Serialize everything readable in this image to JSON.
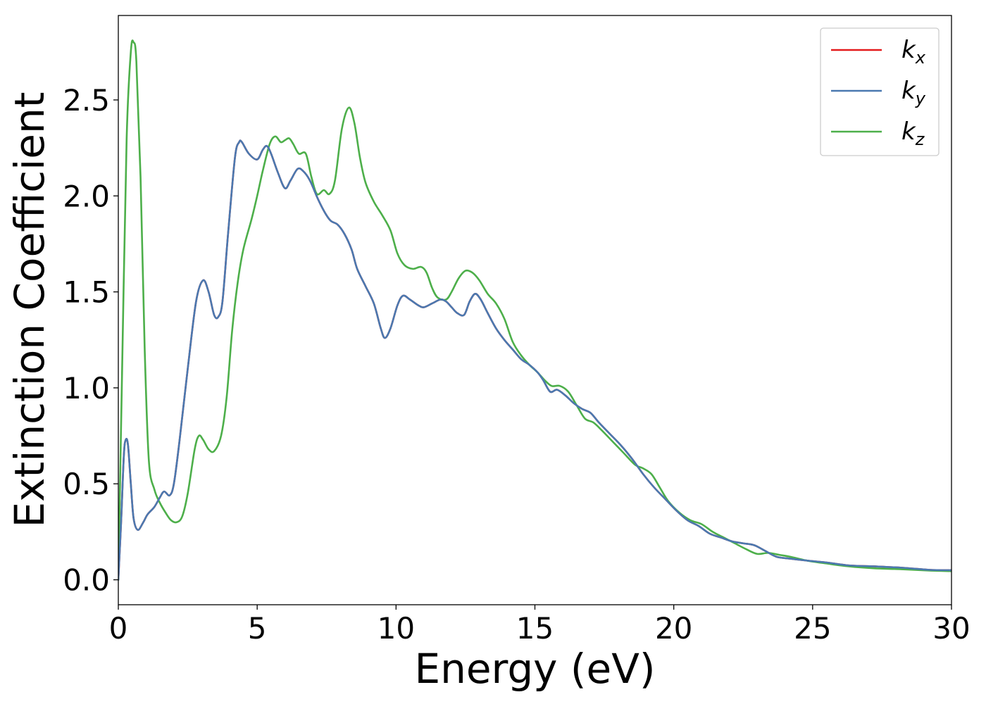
{
  "chart_data": {
    "type": "line",
    "title": "",
    "xlabel": "Energy (eV)",
    "ylabel": "Extinction Coefficient",
    "xlim": [
      0,
      30
    ],
    "ylim": [
      -0.13,
      2.94
    ],
    "xticks": [
      0,
      5,
      10,
      15,
      20,
      25,
      30
    ],
    "xtick_labels": [
      "0",
      "5",
      "10",
      "15",
      "20",
      "25",
      "30"
    ],
    "yticks": [
      0.0,
      0.5,
      1.0,
      1.5,
      2.0,
      2.5
    ],
    "ytick_labels": [
      "0.0",
      "0.5",
      "1.0",
      "1.5",
      "2.0",
      "2.5"
    ],
    "grid": false,
    "legend_position": "top-right",
    "series": [
      {
        "name": "k_x",
        "legend_main": "k",
        "legend_sub": "x",
        "color": "#e41a1c",
        "points": [
          [
            0,
            0.0
          ],
          [
            0.1,
            0.3
          ],
          [
            0.2,
            0.65
          ],
          [
            0.27,
            0.73
          ],
          [
            0.35,
            0.7
          ],
          [
            0.45,
            0.5
          ],
          [
            0.55,
            0.32
          ],
          [
            0.7,
            0.26
          ],
          [
            0.9,
            0.3
          ],
          [
            1.05,
            0.34
          ],
          [
            1.3,
            0.38
          ],
          [
            1.5,
            0.43
          ],
          [
            1.65,
            0.46
          ],
          [
            1.85,
            0.44
          ],
          [
            2.0,
            0.5
          ],
          [
            2.2,
            0.72
          ],
          [
            2.5,
            1.1
          ],
          [
            2.8,
            1.45
          ],
          [
            3.05,
            1.56
          ],
          [
            3.25,
            1.5
          ],
          [
            3.45,
            1.38
          ],
          [
            3.6,
            1.37
          ],
          [
            3.75,
            1.45
          ],
          [
            3.95,
            1.8
          ],
          [
            4.2,
            2.2
          ],
          [
            4.35,
            2.28
          ],
          [
            4.45,
            2.28
          ],
          [
            4.7,
            2.22
          ],
          [
            5.0,
            2.19
          ],
          [
            5.2,
            2.24
          ],
          [
            5.35,
            2.26
          ],
          [
            5.5,
            2.22
          ],
          [
            5.75,
            2.12
          ],
          [
            6.0,
            2.04
          ],
          [
            6.2,
            2.08
          ],
          [
            6.45,
            2.14
          ],
          [
            6.65,
            2.13
          ],
          [
            6.9,
            2.08
          ],
          [
            7.2,
            1.98
          ],
          [
            7.45,
            1.91
          ],
          [
            7.65,
            1.87
          ],
          [
            7.9,
            1.85
          ],
          [
            8.15,
            1.8
          ],
          [
            8.4,
            1.72
          ],
          [
            8.6,
            1.62
          ],
          [
            8.9,
            1.53
          ],
          [
            9.2,
            1.44
          ],
          [
            9.45,
            1.31
          ],
          [
            9.6,
            1.26
          ],
          [
            9.8,
            1.31
          ],
          [
            10.05,
            1.43
          ],
          [
            10.25,
            1.48
          ],
          [
            10.5,
            1.46
          ],
          [
            10.8,
            1.43
          ],
          [
            11.0,
            1.42
          ],
          [
            11.3,
            1.44
          ],
          [
            11.6,
            1.46
          ],
          [
            11.8,
            1.45
          ],
          [
            12.0,
            1.42
          ],
          [
            12.2,
            1.39
          ],
          [
            12.45,
            1.38
          ],
          [
            12.65,
            1.45
          ],
          [
            12.85,
            1.49
          ],
          [
            13.05,
            1.46
          ],
          [
            13.3,
            1.39
          ],
          [
            13.6,
            1.31
          ],
          [
            13.9,
            1.25
          ],
          [
            14.2,
            1.2
          ],
          [
            14.5,
            1.15
          ],
          [
            14.8,
            1.12
          ],
          [
            15.1,
            1.08
          ],
          [
            15.3,
            1.04
          ],
          [
            15.55,
            0.98
          ],
          [
            15.8,
            0.99
          ],
          [
            16.1,
            0.96
          ],
          [
            16.4,
            0.92
          ],
          [
            16.7,
            0.89
          ],
          [
            17.0,
            0.87
          ],
          [
            17.3,
            0.82
          ],
          [
            17.7,
            0.76
          ],
          [
            18.1,
            0.7
          ],
          [
            18.5,
            0.63
          ],
          [
            18.9,
            0.55
          ],
          [
            19.3,
            0.48
          ],
          [
            19.7,
            0.42
          ],
          [
            20.1,
            0.36
          ],
          [
            20.5,
            0.31
          ],
          [
            20.9,
            0.28
          ],
          [
            21.3,
            0.24
          ],
          [
            21.7,
            0.22
          ],
          [
            22.1,
            0.2
          ],
          [
            22.5,
            0.19
          ],
          [
            22.9,
            0.18
          ],
          [
            23.3,
            0.15
          ],
          [
            23.7,
            0.12
          ],
          [
            24.2,
            0.11
          ],
          [
            24.8,
            0.1
          ],
          [
            25.5,
            0.09
          ],
          [
            26.3,
            0.075
          ],
          [
            27.2,
            0.07
          ],
          [
            28.2,
            0.063
          ],
          [
            29.2,
            0.052
          ],
          [
            30.0,
            0.05
          ]
        ]
      },
      {
        "name": "k_y",
        "legend_main": "k",
        "legend_sub": "y",
        "color": "#4a79b0",
        "points": [
          [
            0,
            0.0
          ],
          [
            0.1,
            0.3
          ],
          [
            0.2,
            0.65
          ],
          [
            0.27,
            0.73
          ],
          [
            0.35,
            0.7
          ],
          [
            0.45,
            0.5
          ],
          [
            0.55,
            0.32
          ],
          [
            0.7,
            0.26
          ],
          [
            0.9,
            0.3
          ],
          [
            1.05,
            0.34
          ],
          [
            1.3,
            0.38
          ],
          [
            1.5,
            0.43
          ],
          [
            1.65,
            0.46
          ],
          [
            1.85,
            0.44
          ],
          [
            2.0,
            0.5
          ],
          [
            2.2,
            0.72
          ],
          [
            2.5,
            1.1
          ],
          [
            2.8,
            1.45
          ],
          [
            3.05,
            1.56
          ],
          [
            3.25,
            1.5
          ],
          [
            3.45,
            1.38
          ],
          [
            3.6,
            1.37
          ],
          [
            3.75,
            1.45
          ],
          [
            3.95,
            1.8
          ],
          [
            4.2,
            2.2
          ],
          [
            4.35,
            2.28
          ],
          [
            4.45,
            2.28
          ],
          [
            4.7,
            2.22
          ],
          [
            5.0,
            2.19
          ],
          [
            5.2,
            2.24
          ],
          [
            5.35,
            2.26
          ],
          [
            5.5,
            2.22
          ],
          [
            5.75,
            2.12
          ],
          [
            6.0,
            2.04
          ],
          [
            6.2,
            2.08
          ],
          [
            6.45,
            2.14
          ],
          [
            6.65,
            2.13
          ],
          [
            6.9,
            2.08
          ],
          [
            7.2,
            1.98
          ],
          [
            7.45,
            1.91
          ],
          [
            7.65,
            1.87
          ],
          [
            7.9,
            1.85
          ],
          [
            8.15,
            1.8
          ],
          [
            8.4,
            1.72
          ],
          [
            8.6,
            1.62
          ],
          [
            8.9,
            1.53
          ],
          [
            9.2,
            1.44
          ],
          [
            9.45,
            1.31
          ],
          [
            9.6,
            1.26
          ],
          [
            9.8,
            1.31
          ],
          [
            10.05,
            1.43
          ],
          [
            10.25,
            1.48
          ],
          [
            10.5,
            1.46
          ],
          [
            10.8,
            1.43
          ],
          [
            11.0,
            1.42
          ],
          [
            11.3,
            1.44
          ],
          [
            11.6,
            1.46
          ],
          [
            11.8,
            1.45
          ],
          [
            12.0,
            1.42
          ],
          [
            12.2,
            1.39
          ],
          [
            12.45,
            1.38
          ],
          [
            12.65,
            1.45
          ],
          [
            12.85,
            1.49
          ],
          [
            13.05,
            1.46
          ],
          [
            13.3,
            1.39
          ],
          [
            13.6,
            1.31
          ],
          [
            13.9,
            1.25
          ],
          [
            14.2,
            1.2
          ],
          [
            14.5,
            1.15
          ],
          [
            14.8,
            1.12
          ],
          [
            15.1,
            1.08
          ],
          [
            15.3,
            1.04
          ],
          [
            15.55,
            0.98
          ],
          [
            15.8,
            0.99
          ],
          [
            16.1,
            0.96
          ],
          [
            16.4,
            0.92
          ],
          [
            16.7,
            0.89
          ],
          [
            17.0,
            0.87
          ],
          [
            17.3,
            0.82
          ],
          [
            17.7,
            0.76
          ],
          [
            18.1,
            0.7
          ],
          [
            18.5,
            0.63
          ],
          [
            18.9,
            0.55
          ],
          [
            19.3,
            0.48
          ],
          [
            19.7,
            0.42
          ],
          [
            20.1,
            0.36
          ],
          [
            20.5,
            0.31
          ],
          [
            20.9,
            0.28
          ],
          [
            21.3,
            0.24
          ],
          [
            21.7,
            0.22
          ],
          [
            22.1,
            0.2
          ],
          [
            22.5,
            0.19
          ],
          [
            22.9,
            0.18
          ],
          [
            23.3,
            0.15
          ],
          [
            23.7,
            0.12
          ],
          [
            24.2,
            0.11
          ],
          [
            24.8,
            0.1
          ],
          [
            25.5,
            0.09
          ],
          [
            26.3,
            0.075
          ],
          [
            27.2,
            0.07
          ],
          [
            28.2,
            0.063
          ],
          [
            29.2,
            0.052
          ],
          [
            30.0,
            0.05
          ]
        ]
      },
      {
        "name": "k_z",
        "legend_main": "k",
        "legend_sub": "z",
        "color": "#4daf4a",
        "points": [
          [
            0,
            0.0
          ],
          [
            0.15,
            1.2
          ],
          [
            0.3,
            2.3
          ],
          [
            0.45,
            2.75
          ],
          [
            0.55,
            2.8
          ],
          [
            0.65,
            2.7
          ],
          [
            0.8,
            2.1
          ],
          [
            0.95,
            1.2
          ],
          [
            1.1,
            0.62
          ],
          [
            1.3,
            0.47
          ],
          [
            1.5,
            0.4
          ],
          [
            1.7,
            0.35
          ],
          [
            1.9,
            0.31
          ],
          [
            2.1,
            0.3
          ],
          [
            2.3,
            0.33
          ],
          [
            2.5,
            0.45
          ],
          [
            2.75,
            0.68
          ],
          [
            2.9,
            0.75
          ],
          [
            3.05,
            0.73
          ],
          [
            3.25,
            0.68
          ],
          [
            3.45,
            0.67
          ],
          [
            3.7,
            0.75
          ],
          [
            3.9,
            0.95
          ],
          [
            4.1,
            1.3
          ],
          [
            4.3,
            1.55
          ],
          [
            4.5,
            1.72
          ],
          [
            4.8,
            1.88
          ],
          [
            5.0,
            2.0
          ],
          [
            5.2,
            2.13
          ],
          [
            5.45,
            2.27
          ],
          [
            5.65,
            2.31
          ],
          [
            5.85,
            2.28
          ],
          [
            6.0,
            2.29
          ],
          [
            6.15,
            2.3
          ],
          [
            6.3,
            2.27
          ],
          [
            6.5,
            2.22
          ],
          [
            6.75,
            2.22
          ],
          [
            6.95,
            2.1
          ],
          [
            7.15,
            2.01
          ],
          [
            7.4,
            2.03
          ],
          [
            7.6,
            2.01
          ],
          [
            7.8,
            2.08
          ],
          [
            8.05,
            2.35
          ],
          [
            8.3,
            2.46
          ],
          [
            8.5,
            2.38
          ],
          [
            8.7,
            2.2
          ],
          [
            8.9,
            2.07
          ],
          [
            9.2,
            1.97
          ],
          [
            9.5,
            1.9
          ],
          [
            9.8,
            1.82
          ],
          [
            10.05,
            1.7
          ],
          [
            10.3,
            1.64
          ],
          [
            10.6,
            1.62
          ],
          [
            10.9,
            1.63
          ],
          [
            11.1,
            1.6
          ],
          [
            11.3,
            1.52
          ],
          [
            11.5,
            1.47
          ],
          [
            11.8,
            1.46
          ],
          [
            12.0,
            1.5
          ],
          [
            12.25,
            1.57
          ],
          [
            12.5,
            1.61
          ],
          [
            12.75,
            1.6
          ],
          [
            13.0,
            1.56
          ],
          [
            13.3,
            1.49
          ],
          [
            13.6,
            1.44
          ],
          [
            13.9,
            1.36
          ],
          [
            14.2,
            1.24
          ],
          [
            14.5,
            1.17
          ],
          [
            14.8,
            1.12
          ],
          [
            15.1,
            1.08
          ],
          [
            15.35,
            1.04
          ],
          [
            15.6,
            1.01
          ],
          [
            15.9,
            1.01
          ],
          [
            16.2,
            0.98
          ],
          [
            16.5,
            0.91
          ],
          [
            16.8,
            0.84
          ],
          [
            17.1,
            0.82
          ],
          [
            17.4,
            0.78
          ],
          [
            17.8,
            0.72
          ],
          [
            18.2,
            0.66
          ],
          [
            18.6,
            0.6
          ],
          [
            18.9,
            0.58
          ],
          [
            19.2,
            0.55
          ],
          [
            19.5,
            0.48
          ],
          [
            19.8,
            0.41
          ],
          [
            20.2,
            0.35
          ],
          [
            20.6,
            0.31
          ],
          [
            21.0,
            0.29
          ],
          [
            21.4,
            0.25
          ],
          [
            21.8,
            0.22
          ],
          [
            22.2,
            0.19
          ],
          [
            22.6,
            0.16
          ],
          [
            23.0,
            0.135
          ],
          [
            23.4,
            0.14
          ],
          [
            23.8,
            0.13
          ],
          [
            24.2,
            0.12
          ],
          [
            24.8,
            0.1
          ],
          [
            25.5,
            0.085
          ],
          [
            26.3,
            0.07
          ],
          [
            27.2,
            0.06
          ],
          [
            28.2,
            0.055
          ],
          [
            29.2,
            0.048
          ],
          [
            30.0,
            0.045
          ]
        ]
      }
    ]
  }
}
